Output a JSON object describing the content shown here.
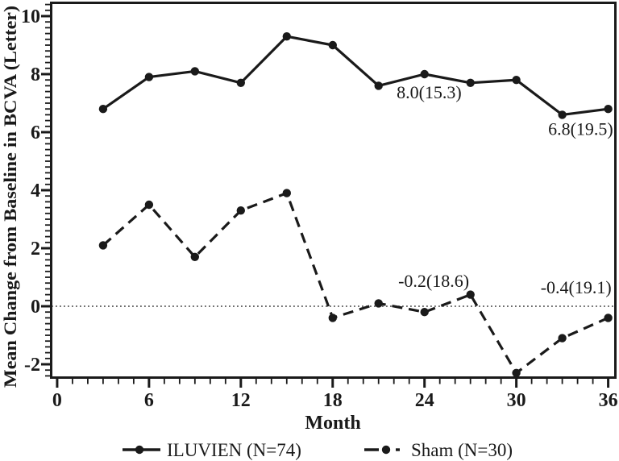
{
  "figure": {
    "background": "#ffffff",
    "ink": "#1a1a1a",
    "muted_ink": "#3a3a3a"
  },
  "chart_data": {
    "type": "line",
    "title": "",
    "xlabel": "Month",
    "ylabel": "Mean Change from Baseline in BCVA (Letter)",
    "x": [
      3,
      6,
      9,
      12,
      15,
      18,
      21,
      24,
      27,
      30,
      33,
      36
    ],
    "series": [
      {
        "name": "ILUVIEN (N=74)",
        "line_style": "solid",
        "marker": "filled-circle",
        "values": [
          6.8,
          7.9,
          8.1,
          7.7,
          9.3,
          9.0,
          7.6,
          8.0,
          7.7,
          7.8,
          6.6,
          6.8
        ]
      },
      {
        "name": "Sham (N=30)",
        "line_style": "dashed",
        "marker": "filled-circle",
        "values": [
          2.1,
          3.5,
          1.7,
          3.3,
          3.9,
          -0.4,
          0.1,
          -0.2,
          0.4,
          -2.3,
          -1.1,
          -0.4
        ]
      }
    ],
    "xlim": [
      -0.47,
      36.47
    ],
    "ylim": [
      -2.5,
      10.5
    ],
    "x_major_ticks": [
      0,
      6,
      12,
      18,
      24,
      30,
      36
    ],
    "x_minor_tick_step": 1,
    "y_major_ticks": [
      -2,
      0,
      2,
      4,
      6,
      8,
      10
    ],
    "y_minor_tick_step": 0.2,
    "reference_line_y": 0,
    "grid": "off",
    "legend_position": "bottom",
    "annotations": [
      {
        "text": "8.0(15.3)",
        "x": 24.3,
        "y": 7.17
      },
      {
        "text": "6.8(19.5)",
        "x": 34.2,
        "y": 5.9
      },
      {
        "text": "-0.2(18.6)",
        "x": 24.6,
        "y": 0.67
      },
      {
        "text": "-0.4(19.1)",
        "x": 33.9,
        "y": 0.44
      }
    ]
  }
}
